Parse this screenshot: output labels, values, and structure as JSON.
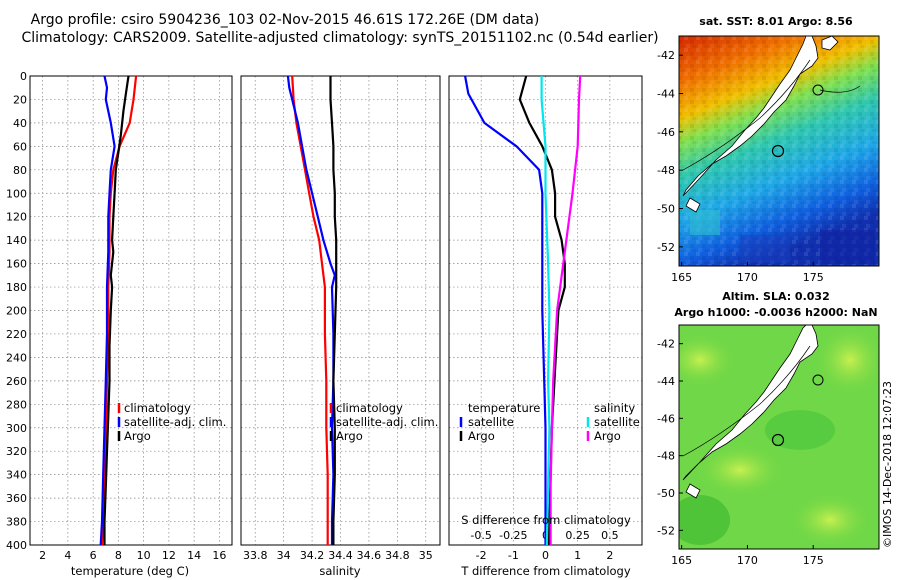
{
  "title": {
    "line1": "Argo profile: csiro 5904236_103 02-Nov-2015 46.61S 172.26E (DM data)",
    "line2": "Climatology: CARS2009. Satellite-adjusted climatology: synTS_20151102.nc (0.54d earlier)"
  },
  "colors": {
    "climatology": "#ff0000",
    "satellite": "#0000ff",
    "argo": "#000000",
    "satellite_salinity": "#00e5ee",
    "argo_salinity": "#ff00ff"
  },
  "y_ticks": [
    "0",
    "20",
    "40",
    "60",
    "80",
    "100",
    "120",
    "140",
    "160",
    "180",
    "200",
    "220",
    "240",
    "260",
    "280",
    "300",
    "320",
    "340",
    "360",
    "380",
    "400"
  ],
  "chart_data": [
    {
      "type": "line",
      "name": "temperature",
      "xlabel": "temperature (deg C)",
      "x_ticks": [
        "2",
        "4",
        "6",
        "8",
        "10",
        "12",
        "14",
        "16"
      ],
      "xlim": [
        1,
        17
      ],
      "ylim": [
        0,
        400
      ],
      "legend": {
        "position": "right",
        "items": [
          {
            "label": "climatology",
            "series": "climatology"
          },
          {
            "label": "satellite-adj. clim.",
            "series": "satellite"
          },
          {
            "label": "Argo",
            "series": "argo"
          }
        ]
      },
      "series": [
        {
          "name": "climatology",
          "color_key": "climatology",
          "points": [
            [
              9.4,
              0
            ],
            [
              9.2,
              20
            ],
            [
              8.9,
              40
            ],
            [
              8.1,
              60
            ],
            [
              7.6,
              80
            ],
            [
              7.4,
              100
            ],
            [
              7.3,
              120
            ],
            [
              7.3,
              150
            ],
            [
              7.2,
              180
            ],
            [
              7.2,
              220
            ],
            [
              7.1,
              260
            ],
            [
              7.0,
              300
            ],
            [
              6.9,
              340
            ],
            [
              6.8,
              380
            ],
            [
              6.7,
              400
            ]
          ]
        },
        {
          "name": "satellite",
          "color_key": "satellite",
          "points": [
            [
              6.9,
              0
            ],
            [
              7.1,
              10
            ],
            [
              7.0,
              20
            ],
            [
              7.4,
              40
            ],
            [
              7.7,
              60
            ],
            [
              7.4,
              80
            ],
            [
              7.3,
              100
            ],
            [
              7.2,
              120
            ],
            [
              7.2,
              150
            ],
            [
              7.1,
              180
            ],
            [
              7.1,
              220
            ],
            [
              7.0,
              260
            ],
            [
              6.9,
              300
            ],
            [
              6.8,
              340
            ],
            [
              6.7,
              380
            ],
            [
              6.6,
              400
            ]
          ]
        },
        {
          "name": "argo",
          "color_key": "argo",
          "points": [
            [
              8.8,
              0
            ],
            [
              8.6,
              15
            ],
            [
              8.4,
              30
            ],
            [
              8.2,
              50
            ],
            [
              8.0,
              65
            ],
            [
              7.8,
              80
            ],
            [
              7.7,
              100
            ],
            [
              7.6,
              120
            ],
            [
              7.5,
              140
            ],
            [
              7.6,
              150
            ],
            [
              7.4,
              170
            ],
            [
              7.5,
              180
            ],
            [
              7.4,
              200
            ],
            [
              7.3,
              230
            ],
            [
              7.3,
              260
            ],
            [
              7.2,
              290
            ],
            [
              7.1,
              320
            ],
            [
              7.0,
              350
            ],
            [
              6.9,
              380
            ],
            [
              6.9,
              400
            ]
          ]
        }
      ]
    },
    {
      "type": "line",
      "name": "salinity",
      "xlabel": "salinity",
      "x_ticks": [
        "33.8",
        "34",
        "34.2",
        "34.4",
        "34.6",
        "34.8",
        "35"
      ],
      "xlim": [
        33.7,
        35.1
      ],
      "ylim": [
        0,
        400
      ],
      "legend": {
        "position": "right",
        "items": [
          {
            "label": "climatology",
            "series": "climatology"
          },
          {
            "label": "satellite-adj. clim.",
            "series": "satellite"
          },
          {
            "label": "Argo",
            "series": "argo"
          }
        ]
      },
      "series": [
        {
          "name": "climatology",
          "color_key": "climatology",
          "points": [
            [
              34.06,
              0
            ],
            [
              34.07,
              20
            ],
            [
              34.09,
              40
            ],
            [
              34.12,
              60
            ],
            [
              34.15,
              80
            ],
            [
              34.18,
              100
            ],
            [
              34.21,
              120
            ],
            [
              34.25,
              140
            ],
            [
              34.27,
              160
            ],
            [
              34.29,
              180
            ],
            [
              34.29,
              220
            ],
            [
              34.3,
              260
            ],
            [
              34.3,
              300
            ],
            [
              34.31,
              340
            ],
            [
              34.31,
              380
            ],
            [
              34.31,
              400
            ]
          ]
        },
        {
          "name": "satellite",
          "color_key": "satellite",
          "points": [
            [
              34.03,
              0
            ],
            [
              34.04,
              10
            ],
            [
              34.06,
              20
            ],
            [
              34.1,
              40
            ],
            [
              34.13,
              60
            ],
            [
              34.16,
              80
            ],
            [
              34.2,
              100
            ],
            [
              34.24,
              120
            ],
            [
              34.28,
              140
            ],
            [
              34.33,
              160
            ],
            [
              34.36,
              170
            ],
            [
              34.34,
              180
            ],
            [
              34.35,
              220
            ],
            [
              34.35,
              260
            ],
            [
              34.34,
              300
            ],
            [
              34.35,
              340
            ],
            [
              34.34,
              380
            ],
            [
              34.34,
              400
            ]
          ]
        },
        {
          "name": "argo",
          "color_key": "argo",
          "points": [
            [
              34.33,
              0
            ],
            [
              34.33,
              20
            ],
            [
              34.34,
              40
            ],
            [
              34.35,
              60
            ],
            [
              34.35,
              80
            ],
            [
              34.36,
              100
            ],
            [
              34.36,
              120
            ],
            [
              34.37,
              140
            ],
            [
              34.37,
              160
            ],
            [
              34.37,
              180
            ],
            [
              34.36,
              220
            ],
            [
              34.35,
              260
            ],
            [
              34.36,
              300
            ],
            [
              34.36,
              340
            ],
            [
              34.35,
              380
            ],
            [
              34.35,
              400
            ]
          ]
        }
      ]
    },
    {
      "type": "line",
      "name": "differences",
      "xlabel": "T difference from climatology",
      "x_ticks": [
        "-2",
        "-1",
        "0",
        "1",
        "2"
      ],
      "xlim": [
        -3,
        3
      ],
      "x2label": "S difference from climatology",
      "x2_ticks": [
        "-0.5",
        "-0.25",
        "0",
        "0.25",
        "0.5"
      ],
      "x2lim": [
        -0.75,
        0.75
      ],
      "ylim": [
        0,
        400
      ],
      "legend": {
        "position": "right",
        "temperature_title": "temperature",
        "salinity_title": "salinity",
        "items": [
          {
            "label": "satellite",
            "series": "t_satellite"
          },
          {
            "label": "Argo",
            "series": "t_argo"
          },
          {
            "label": "satellite",
            "series": "s_satellite"
          },
          {
            "label": "Argo",
            "series": "s_argo"
          }
        ]
      },
      "series": [
        {
          "name": "t_satellite",
          "color_key": "satellite",
          "axis": "T",
          "points": [
            [
              -2.5,
              0
            ],
            [
              -2.4,
              15
            ],
            [
              -1.9,
              40
            ],
            [
              -0.9,
              60
            ],
            [
              -0.2,
              80
            ],
            [
              -0.1,
              100
            ],
            [
              -0.1,
              150
            ],
            [
              -0.1,
              200
            ],
            [
              0.0,
              300
            ],
            [
              0.0,
              400
            ]
          ]
        },
        {
          "name": "t_argo",
          "color_key": "argo",
          "axis": "T",
          "points": [
            [
              -0.6,
              0
            ],
            [
              -0.8,
              20
            ],
            [
              -0.5,
              40
            ],
            [
              -0.1,
              60
            ],
            [
              0.2,
              80
            ],
            [
              0.3,
              100
            ],
            [
              0.3,
              120
            ],
            [
              0.5,
              140
            ],
            [
              0.6,
              160
            ],
            [
              0.6,
              180
            ],
            [
              0.4,
              200
            ],
            [
              0.3,
              250
            ],
            [
              0.2,
              300
            ],
            [
              0.1,
              400
            ]
          ]
        },
        {
          "name": "s_satellite",
          "color_key": "satellite_salinity",
          "axis": "S",
          "points": [
            [
              -0.03,
              0
            ],
            [
              -0.03,
              20
            ],
            [
              0.0,
              60
            ],
            [
              0.0,
              100
            ],
            [
              0.02,
              160
            ],
            [
              0.03,
              200
            ],
            [
              0.02,
              260
            ],
            [
              0.03,
              300
            ],
            [
              0.02,
              350
            ],
            [
              0.01,
              400
            ]
          ]
        },
        {
          "name": "s_argo",
          "color_key": "argo_salinity",
          "axis": "S",
          "points": [
            [
              0.27,
              0
            ],
            [
              0.26,
              20
            ],
            [
              0.25,
              60
            ],
            [
              0.21,
              100
            ],
            [
              0.15,
              150
            ],
            [
              0.09,
              200
            ],
            [
              0.06,
              260
            ],
            [
              0.05,
              300
            ],
            [
              0.04,
              350
            ],
            [
              0.04,
              400
            ]
          ]
        }
      ]
    }
  ],
  "maps": {
    "sst": {
      "title": "sat. SST: 8.01 Argo: 8.56",
      "y_ticks": [
        "-42",
        "-44",
        "-46",
        "-48",
        "-50",
        "-52"
      ],
      "x_ticks": [
        "165",
        "170",
        "175"
      ]
    },
    "sla": {
      "title_line1": "Altim. SLA: 0.032",
      "title_line2": "Argo h1000: -0.0036 h2000: NaN",
      "y_ticks": [
        "-42",
        "-44",
        "-46",
        "-48",
        "-50",
        "-52"
      ],
      "x_ticks": [
        "165",
        "170",
        "175"
      ]
    }
  },
  "watermark": "©IMOS 14-Dec-2018 12:07:23"
}
